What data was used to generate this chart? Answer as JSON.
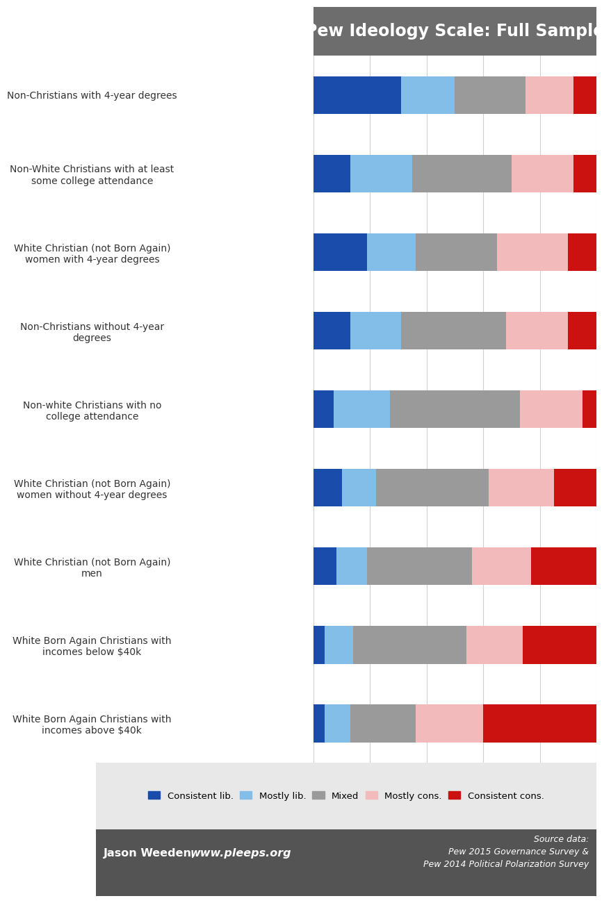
{
  "title": "Pew Ideology Scale: Full Sample",
  "categories": [
    "Non-Christians with 4-year degrees",
    "Non-White Christians with at least\nsome college attendance",
    "White Christian (not Born Again)\nwomen with 4-year degrees",
    "Non-Christians without 4-year\ndegrees",
    "Non-white Christians with no\ncollege attendance",
    "White Christian (not Born Again)\nwomen without 4-year degrees",
    "White Christian (not Born Again)\nmen",
    "White Born Again Christians with\nincomes below $40k",
    "White Born Again Christians with\nincomes above $40k"
  ],
  "segments": {
    "consistent_lib": [
      0.31,
      0.13,
      0.19,
      0.13,
      0.07,
      0.1,
      0.08,
      0.04,
      0.04
    ],
    "mostly_lib": [
      0.19,
      0.22,
      0.17,
      0.18,
      0.2,
      0.12,
      0.11,
      0.1,
      0.09
    ],
    "mixed": [
      0.25,
      0.35,
      0.29,
      0.37,
      0.46,
      0.4,
      0.37,
      0.4,
      0.23
    ],
    "mostly_cons": [
      0.17,
      0.22,
      0.25,
      0.22,
      0.22,
      0.23,
      0.21,
      0.2,
      0.24
    ],
    "consistent_cons": [
      0.08,
      0.08,
      0.1,
      0.1,
      0.05,
      0.15,
      0.23,
      0.26,
      0.4
    ]
  },
  "colors": {
    "consistent_lib": "#1A4DAB",
    "mostly_lib": "#82BEE8",
    "mixed": "#9A9A9A",
    "mostly_cons": "#F2BABA",
    "consistent_cons": "#CC1111"
  },
  "legend_labels": [
    "Consistent lib.",
    "Mostly lib.",
    "Mixed",
    "Mostly cons.",
    "Consistent cons."
  ],
  "legend_keys": [
    "consistent_lib",
    "mostly_lib",
    "mixed",
    "mostly_cons",
    "consistent_cons"
  ],
  "title_bg": "#6D6D6D",
  "title_fg": "#FFFFFF",
  "plot_bg": "#FFFFFF",
  "footer_bg": "#545454",
  "footer_fg": "#FFFFFF",
  "legend_bg": "#E8E8E8",
  "label_split": 0.435,
  "fig_width": 7.2,
  "fig_height": 12.8
}
